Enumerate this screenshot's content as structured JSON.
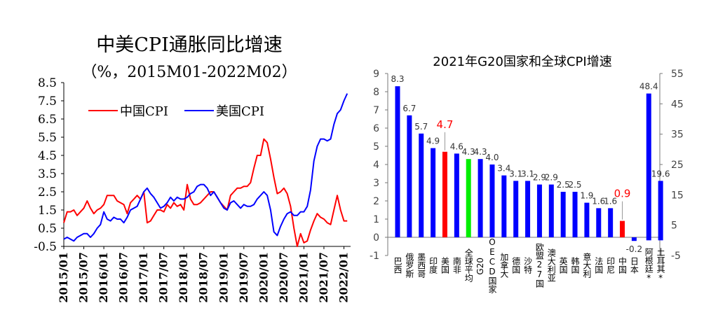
{
  "chart_data": [
    {
      "type": "line",
      "title": "中美CPI通胀同比增速",
      "subtitle": "（%，2015M01-2022M02）",
      "ylim": [
        -0.5,
        8.5
      ],
      "yticks": [
        -0.5,
        0.5,
        1.5,
        2.5,
        3.5,
        4.5,
        5.5,
        6.5,
        7.5,
        8.5
      ],
      "ytick_labels": [
        "-0.5",
        "0.5",
        "1.5",
        "2.5",
        "3.5",
        "4.5",
        "5.5",
        "6.5",
        "7.5",
        "8.5"
      ],
      "xtick_labels": [
        "2015/01",
        "2015/07",
        "2016/01",
        "2016/07",
        "2017/01",
        "2017/07",
        "2018/01",
        "2018/07",
        "2019/01",
        "2019/07",
        "2020/01",
        "2020/07",
        "2021/01",
        "2021/07",
        "2022/01"
      ],
      "legend_position": "top",
      "series": [
        {
          "name": "中国CPI",
          "color": "#ff0000",
          "values": [
            0.8,
            1.4,
            1.4,
            1.5,
            1.2,
            1.4,
            1.6,
            2.0,
            1.6,
            1.3,
            1.5,
            1.6,
            1.8,
            2.3,
            2.3,
            2.3,
            2.0,
            1.9,
            1.8,
            1.3,
            1.9,
            2.1,
            2.3,
            2.1,
            2.5,
            0.8,
            0.9,
            1.2,
            1.5,
            1.5,
            1.4,
            1.8,
            1.6,
            1.9,
            1.7,
            1.8,
            1.5,
            2.9,
            2.1,
            1.8,
            1.8,
            1.9,
            2.1,
            2.3,
            2.5,
            2.5,
            2.2,
            1.9,
            1.7,
            1.5,
            2.3,
            2.5,
            2.7,
            2.7,
            2.8,
            2.8,
            3.0,
            3.8,
            4.5,
            4.5,
            5.4,
            5.2,
            4.3,
            3.3,
            2.4,
            2.5,
            2.7,
            2.4,
            1.7,
            0.5,
            -0.5,
            0.2,
            -0.3,
            -0.2,
            0.4,
            0.9,
            1.3,
            1.1,
            1.0,
            0.8,
            0.7,
            1.5,
            2.3,
            1.5,
            0.9,
            0.9
          ],
          "label_values": [
            "0.8",
            "1.4",
            "1.4",
            "1.5",
            "1.2",
            "1.4",
            "1.6",
            "2.0",
            "1.6",
            "1.3",
            "1.5",
            "1.6",
            "1.8",
            "2.3",
            "2.3",
            "2.3",
            "2.0",
            "1.9",
            "1.8",
            "1.3",
            "1.9",
            "2.1",
            "2.3",
            "2.1",
            "2.5",
            "0.8",
            "0.9",
            "1.2",
            "1.5",
            "1.5",
            "1.4",
            "1.8",
            "1.6",
            "1.9",
            "1.7",
            "1.8",
            "1.5",
            "2.9",
            "2.1",
            "1.8",
            "1.8",
            "1.9",
            "2.1",
            "2.3",
            "2.5",
            "2.5",
            "2.2",
            "1.9",
            "1.7",
            "1.5",
            "2.3",
            "2.5",
            "2.7",
            "2.7",
            "2.8",
            "2.8",
            "3.0",
            "3.8",
            "4.5",
            "4.5",
            "5.4",
            "5.2",
            "4.3",
            "3.3",
            "2.4",
            "2.5",
            "2.7",
            "2.4",
            "1.7",
            "0.5",
            "-0.5",
            "0.2",
            "-0.3",
            "-0.2",
            "0.4",
            "0.9",
            "1.3",
            "1.1",
            "1.0",
            "0.8",
            "0.7",
            "1.5",
            "2.3",
            "1.5",
            "0.9",
            "0.9"
          ]
        },
        {
          "name": "美国CPI",
          "color": "#0000ff",
          "values": [
            -0.1,
            0.0,
            -0.1,
            -0.2,
            0.0,
            0.1,
            0.2,
            0.2,
            0.0,
            0.2,
            0.5,
            0.7,
            1.4,
            1.0,
            0.9,
            1.1,
            1.0,
            1.0,
            0.8,
            1.1,
            1.5,
            1.6,
            1.7,
            2.1,
            2.5,
            2.7,
            2.4,
            2.2,
            1.9,
            1.6,
            1.7,
            1.9,
            2.2,
            2.0,
            2.2,
            2.1,
            2.1,
            2.2,
            2.4,
            2.5,
            2.8,
            2.9,
            2.9,
            2.7,
            2.3,
            2.5,
            2.2,
            1.9,
            1.6,
            1.5,
            1.9,
            2.0,
            1.8,
            1.6,
            1.8,
            1.7,
            1.7,
            1.8,
            2.1,
            2.3,
            2.5,
            2.3,
            1.5,
            0.3,
            0.1,
            0.6,
            1.0,
            1.3,
            1.4,
            1.2,
            1.2,
            1.4,
            1.4,
            1.7,
            2.6,
            4.2,
            5.0,
            5.4,
            5.4,
            5.3,
            5.4,
            6.2,
            6.8,
            7.0,
            7.5,
            7.9
          ],
          "label_values": [
            "-0.1",
            "0.0",
            "-0.1",
            "-0.2",
            "0.0",
            "0.1",
            "0.2",
            "0.2",
            "0.0",
            "0.2",
            "0.5",
            "0.7",
            "1.4",
            "1.0",
            "0.9",
            "1.1",
            "1.0",
            "1.0",
            "0.8",
            "1.1",
            "1.5",
            "1.6",
            "1.7",
            "2.1",
            "2.5",
            "2.7",
            "2.4",
            "2.2",
            "1.9",
            "1.6",
            "1.7",
            "1.9",
            "2.2",
            "2.0",
            "2.2",
            "2.1",
            "2.1",
            "2.2",
            "2.4",
            "2.5",
            "2.8",
            "2.9",
            "2.9",
            "2.7",
            "2.3",
            "2.5",
            "2.2",
            "1.9",
            "1.6",
            "1.5",
            "1.9",
            "2.0",
            "1.8",
            "1.6",
            "1.8",
            "1.7",
            "1.7",
            "1.8",
            "2.1",
            "2.3",
            "2.5",
            "2.3",
            "1.5",
            "0.3",
            "0.1",
            "0.6",
            "1.0",
            "1.3",
            "1.4",
            "1.2",
            "1.2",
            "1.4",
            "1.4",
            "1.7",
            "2.6",
            "4.2",
            "5.0",
            "5.4",
            "5.4",
            "5.3",
            "5.4",
            "6.2",
            "6.8",
            "7.0",
            "7.5",
            "7.9"
          ]
        }
      ]
    },
    {
      "type": "bar",
      "title": "2021年G20国家和全球CPI增速",
      "ylim_left": [
        -1,
        9
      ],
      "yticks_left": [
        "-1",
        "0",
        "1",
        "2",
        "3",
        "4",
        "5",
        "6",
        "7",
        "8",
        "9"
      ],
      "ylim_right": [
        -5,
        55
      ],
      "yticks_right": [
        "-5",
        "5",
        "15",
        "25",
        "35",
        "45",
        "55"
      ],
      "categories": [
        "巴西",
        "俄罗斯",
        "墨西哥",
        "印度",
        "美国",
        "南非",
        "全球平均",
        "G20",
        "OECD国家",
        "加拿大",
        "德国",
        "沙特",
        "欧盟27国",
        "澳大利亚",
        "英国",
        "韩国",
        "意大利",
        "法国",
        "印尼",
        "中国",
        "日本",
        "阿根廷*",
        "土耳其*"
      ],
      "values": [
        8.3,
        6.7,
        5.7,
        4.9,
        4.7,
        4.6,
        4.3,
        4.3,
        4.0,
        3.4,
        3.1,
        3.1,
        2.9,
        2.9,
        2.5,
        2.5,
        1.9,
        1.6,
        1.6,
        0.9,
        -0.2,
        48.4,
        19.6
      ],
      "value_labels": [
        "8.3",
        "6.7",
        "5.7",
        "4.9",
        "4.7",
        "4.6",
        "4.3",
        "4.3",
        "4.0",
        "3.4",
        "3.1",
        "3.1",
        "2.9",
        "2.9",
        "2.5",
        "2.5",
        "1.9",
        "1.6",
        "1.6",
        "0.9",
        "-0.2",
        "48.4",
        "19.6"
      ],
      "axis": [
        "left",
        "left",
        "left",
        "left",
        "left",
        "left",
        "left",
        "left",
        "left",
        "left",
        "left",
        "left",
        "left",
        "left",
        "left",
        "left",
        "left",
        "left",
        "left",
        "left",
        "left",
        "right",
        "right"
      ],
      "colors": [
        "#0000ff",
        "#0000ff",
        "#0000ff",
        "#0000ff",
        "#ff0000",
        "#0000ff",
        "#00ee00",
        "#0000ff",
        "#0000ff",
        "#0000ff",
        "#0000ff",
        "#0000ff",
        "#0000ff",
        "#0000ff",
        "#0000ff",
        "#0000ff",
        "#0000ff",
        "#0000ff",
        "#0000ff",
        "#ff0000",
        "#0000ff",
        "#0000ff",
        "#0000ff"
      ],
      "highlight_label_color": "#ff0000",
      "highlighted": [
        "美国",
        "中国"
      ]
    }
  ]
}
